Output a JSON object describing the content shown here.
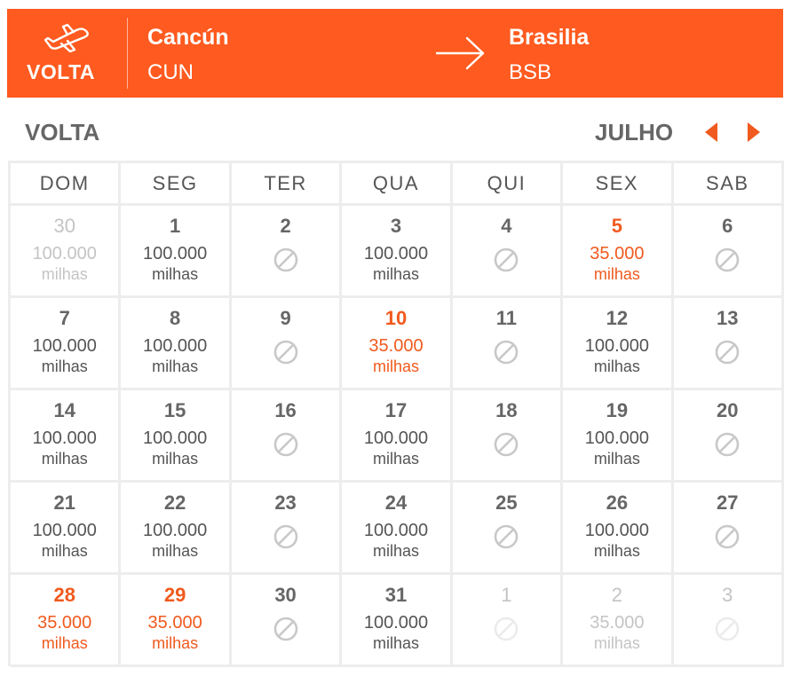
{
  "header": {
    "leg_label": "VOLTA",
    "origin_city": "Cancún",
    "origin_code": "CUN",
    "destination_city": "Brasilia",
    "destination_code": "BSB",
    "plane_icon": "airplane-icon",
    "arrow_icon": "arrow-right-icon",
    "accent_color": "#ff5a1f"
  },
  "calendar": {
    "title": "VOLTA",
    "month": "JULHO",
    "prev_icon": "caret-left-icon",
    "next_icon": "caret-right-icon",
    "weekdays": [
      "DOM",
      "SEG",
      "TER",
      "QUA",
      "QUI",
      "SEX",
      "SAB"
    ],
    "unavailable_icon": "unavailable-icon",
    "promo_color": "#f05a1e",
    "weeks": [
      [
        {
          "day": "30",
          "price": "100.000",
          "unit": "milhas",
          "status": "outside"
        },
        {
          "day": "1",
          "price": "100.000",
          "unit": "milhas",
          "status": "normal"
        },
        {
          "day": "2",
          "status": "unavailable"
        },
        {
          "day": "3",
          "price": "100.000",
          "unit": "milhas",
          "status": "normal"
        },
        {
          "day": "4",
          "status": "unavailable"
        },
        {
          "day": "5",
          "price": "35.000",
          "unit": "milhas",
          "status": "promo"
        },
        {
          "day": "6",
          "status": "unavailable"
        }
      ],
      [
        {
          "day": "7",
          "price": "100.000",
          "unit": "milhas",
          "status": "normal"
        },
        {
          "day": "8",
          "price": "100.000",
          "unit": "milhas",
          "status": "normal"
        },
        {
          "day": "9",
          "status": "unavailable"
        },
        {
          "day": "10",
          "price": "35.000",
          "unit": "milhas",
          "status": "promo"
        },
        {
          "day": "11",
          "status": "unavailable"
        },
        {
          "day": "12",
          "price": "100.000",
          "unit": "milhas",
          "status": "normal"
        },
        {
          "day": "13",
          "status": "unavailable"
        }
      ],
      [
        {
          "day": "14",
          "price": "100.000",
          "unit": "milhas",
          "status": "normal"
        },
        {
          "day": "15",
          "price": "100.000",
          "unit": "milhas",
          "status": "normal"
        },
        {
          "day": "16",
          "status": "unavailable"
        },
        {
          "day": "17",
          "price": "100.000",
          "unit": "milhas",
          "status": "normal"
        },
        {
          "day": "18",
          "status": "unavailable"
        },
        {
          "day": "19",
          "price": "100.000",
          "unit": "milhas",
          "status": "normal"
        },
        {
          "day": "20",
          "status": "unavailable"
        }
      ],
      [
        {
          "day": "21",
          "price": "100.000",
          "unit": "milhas",
          "status": "normal"
        },
        {
          "day": "22",
          "price": "100.000",
          "unit": "milhas",
          "status": "normal"
        },
        {
          "day": "23",
          "status": "unavailable"
        },
        {
          "day": "24",
          "price": "100.000",
          "unit": "milhas",
          "status": "normal"
        },
        {
          "day": "25",
          "status": "unavailable"
        },
        {
          "day": "26",
          "price": "100.000",
          "unit": "milhas",
          "status": "normal"
        },
        {
          "day": "27",
          "status": "unavailable"
        }
      ],
      [
        {
          "day": "28",
          "price": "35.000",
          "unit": "milhas",
          "status": "promo"
        },
        {
          "day": "29",
          "price": "35.000",
          "unit": "milhas",
          "status": "promo"
        },
        {
          "day": "30",
          "status": "unavailable"
        },
        {
          "day": "31",
          "price": "100.000",
          "unit": "milhas",
          "status": "normal"
        },
        {
          "day": "1",
          "status": "outside-unavailable"
        },
        {
          "day": "2",
          "price": "35.000",
          "unit": "milhas",
          "status": "outside"
        },
        {
          "day": "3",
          "status": "outside-unavailable"
        }
      ]
    ]
  }
}
